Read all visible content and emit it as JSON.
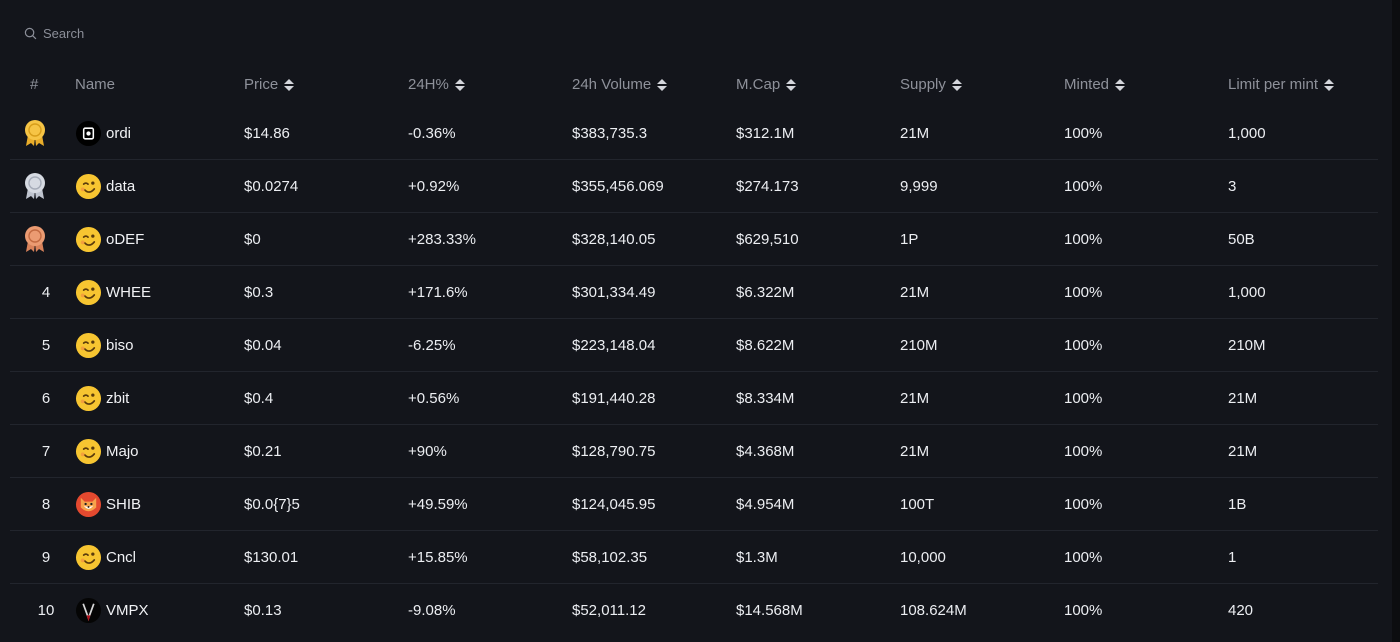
{
  "search": {
    "placeholder": "Search"
  },
  "columns": {
    "rank": "#",
    "name": "Name",
    "price": "Price",
    "change": "24H%",
    "volume": "24h Volume",
    "mcap": "M.Cap",
    "supply": "Supply",
    "minted": "Minted",
    "limit": "Limit per mint"
  },
  "rows": [
    {
      "rank": "1",
      "medal": "gold",
      "icon": "ordi-logo-icon",
      "name": "ordi",
      "price": "$14.86",
      "change": "-0.36%",
      "direction": "down",
      "volume": "$383,735.3",
      "mcap": "$312.1M",
      "supply": "21M",
      "minted": "100%",
      "limit": "1,000"
    },
    {
      "rank": "2",
      "medal": "silver",
      "icon": "smiley-emoji-icon",
      "name": "data",
      "price": "$0.0274",
      "change": "+0.92%",
      "direction": "up",
      "volume": "$355,456.069",
      "mcap": "$274.173",
      "supply": "9,999",
      "minted": "100%",
      "limit": "3"
    },
    {
      "rank": "3",
      "medal": "bronze",
      "icon": "smiley-emoji-icon",
      "name": "oDEF",
      "price": "$0",
      "change": "+283.33%",
      "direction": "up",
      "volume": "$328,140.05",
      "mcap": "$629,510",
      "supply": "1P",
      "minted": "100%",
      "limit": "50B"
    },
    {
      "rank": "4",
      "medal": "",
      "icon": "smiley-emoji-icon",
      "name": "WHEE",
      "price": "$0.3",
      "change": "+171.6%",
      "direction": "up",
      "volume": "$301,334.49",
      "mcap": "$6.322M",
      "supply": "21M",
      "minted": "100%",
      "limit": "1,000"
    },
    {
      "rank": "5",
      "medal": "",
      "icon": "smiley-emoji-icon",
      "name": "biso",
      "price": "$0.04",
      "change": "-6.25%",
      "direction": "down",
      "volume": "$223,148.04",
      "mcap": "$8.622M",
      "supply": "210M",
      "minted": "100%",
      "limit": "210M"
    },
    {
      "rank": "6",
      "medal": "",
      "icon": "smiley-emoji-icon",
      "name": "zbit",
      "price": "$0.4",
      "change": "+0.56%",
      "direction": "up",
      "volume": "$191,440.28",
      "mcap": "$8.334M",
      "supply": "21M",
      "minted": "100%",
      "limit": "21M"
    },
    {
      "rank": "7",
      "medal": "",
      "icon": "smiley-emoji-icon",
      "name": "Majo",
      "price": "$0.21",
      "change": "+90%",
      "direction": "up",
      "volume": "$128,790.75",
      "mcap": "$4.368M",
      "supply": "21M",
      "minted": "100%",
      "limit": "21M"
    },
    {
      "rank": "8",
      "medal": "",
      "icon": "shiba-dog-icon",
      "name": "SHIB",
      "price": "$0.0{7}5",
      "change": "+49.59%",
      "direction": "up",
      "volume": "$124,045.95",
      "mcap": "$4.954M",
      "supply": "100T",
      "minted": "100%",
      "limit": "1B"
    },
    {
      "rank": "9",
      "medal": "",
      "icon": "smiley-emoji-icon",
      "name": "Cncl",
      "price": "$130.01",
      "change": "+15.85%",
      "direction": "up",
      "volume": "$58,102.35",
      "mcap": "$1.3M",
      "supply": "10,000",
      "minted": "100%",
      "limit": "1"
    },
    {
      "rank": "10",
      "medal": "",
      "icon": "vmpx-logo-icon",
      "name": "VMPX",
      "price": "$0.13",
      "change": "-9.08%",
      "direction": "down",
      "volume": "$52,011.12",
      "mcap": "$14.568M",
      "supply": "108.624M",
      "minted": "100%",
      "limit": "420"
    }
  ],
  "colors": {
    "background": "#13151b",
    "positive": "#3cb98a",
    "negative": "#e2535f",
    "header_text": "#8e919a",
    "gold_medal": "#f6c445",
    "silver_medal": "#d6dae2",
    "bronze_medal": "#eb9b72"
  }
}
